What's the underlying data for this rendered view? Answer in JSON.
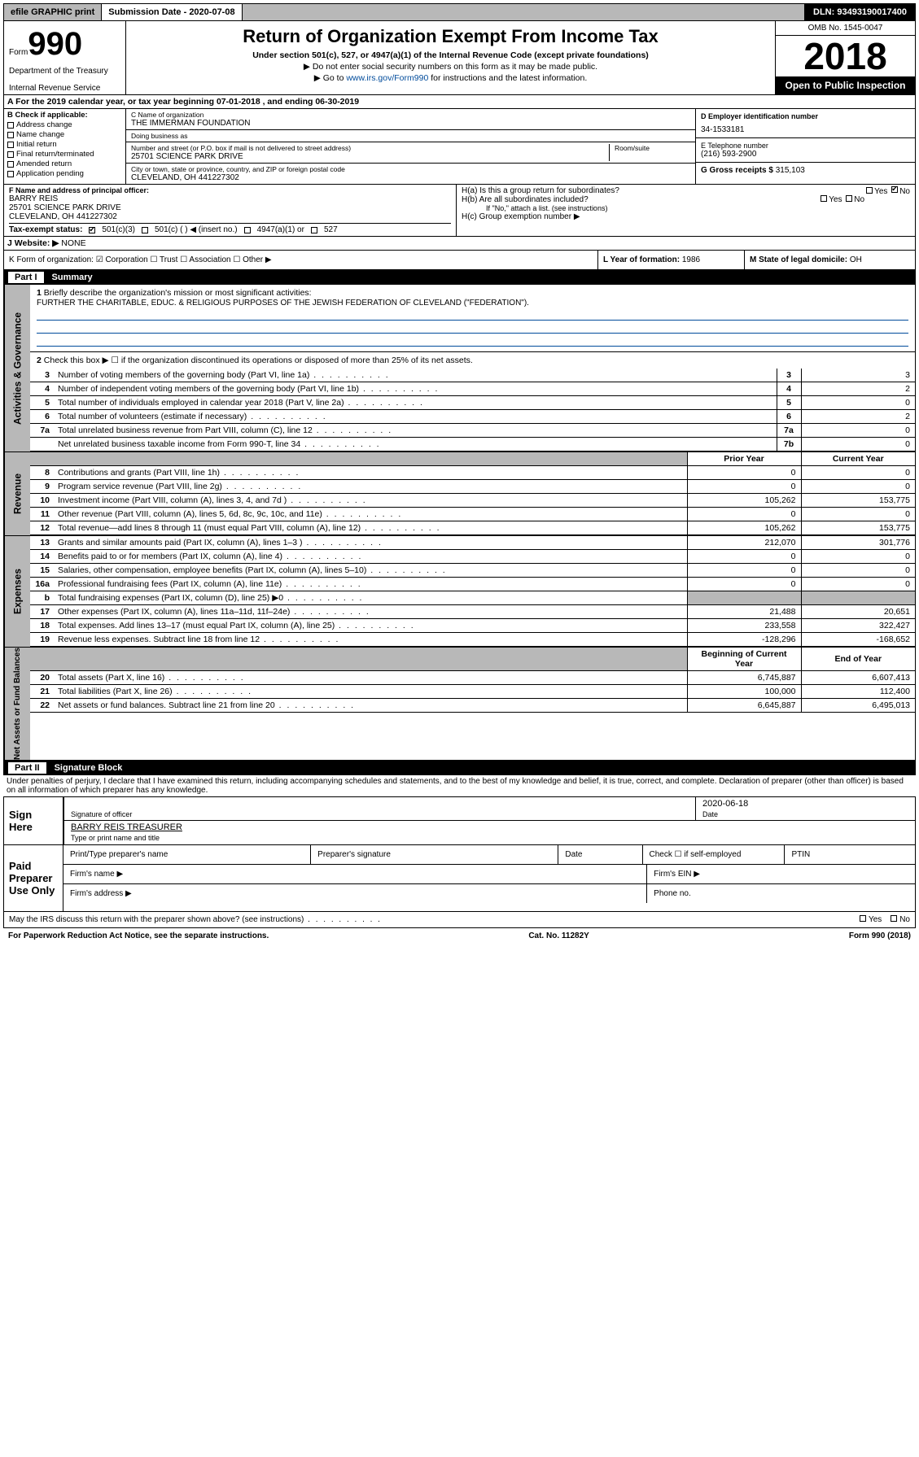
{
  "topbar": {
    "efile": "efile GRAPHIC print",
    "submission_label": "Submission Date - 2020-07-08",
    "dln": "DLN: 93493190017400"
  },
  "header": {
    "form_word": "Form",
    "form_num": "990",
    "agency1": "Department of the Treasury",
    "agency2": "Internal Revenue Service",
    "title": "Return of Organization Exempt From Income Tax",
    "sub1": "Under section 501(c), 527, or 4947(a)(1) of the Internal Revenue Code (except private foundations)",
    "sub2": "▶ Do not enter social security numbers on this form as it may be made public.",
    "sub3_prefix": "▶ Go to ",
    "sub3_link": "www.irs.gov/Form990",
    "sub3_suffix": " for instructions and the latest information.",
    "omb": "OMB No. 1545-0047",
    "year": "2018",
    "open": "Open to Public Inspection"
  },
  "rowA": "A   For the 2019 calendar year, or tax year beginning 07-01-2018    , and ending 06-30-2019",
  "sectionB": {
    "label": "B Check if applicable:",
    "items": [
      "Address change",
      "Name change",
      "Initial return",
      "Final return/terminated",
      "Amended return",
      "Application pending"
    ]
  },
  "sectionC": {
    "name_lbl": "C Name of organization",
    "name": "THE IMMERMAN FOUNDATION",
    "dba_lbl": "Doing business as",
    "dba": "",
    "addr_lbl": "Number and street (or P.O. box if mail is not delivered to street address)",
    "room_lbl": "Room/suite",
    "addr": "25701 SCIENCE PARK DRIVE",
    "city_lbl": "City or town, state or province, country, and ZIP or foreign postal code",
    "city": "CLEVELAND, OH  441227302"
  },
  "sectionD": {
    "ein_lbl": "D Employer identification number",
    "ein": "34-1533181",
    "tel_lbl": "E Telephone number",
    "tel": "(216) 593-2900",
    "gross_lbl": "G Gross receipts $",
    "gross": "315,103"
  },
  "sectionF": {
    "lbl": "F Name and address of principal officer:",
    "name": "BARRY REIS",
    "addr1": "25701 SCIENCE PARK DRIVE",
    "addr2": "CLEVELAND, OH  441227302"
  },
  "sectionH": {
    "ha": "H(a)  Is this a group return for subordinates?",
    "hb": "H(b)  Are all subordinates included?",
    "hb_note": "If \"No,\" attach a list. (see instructions)",
    "hc": "H(c)  Group exemption number ▶",
    "yes": "Yes",
    "no": "No"
  },
  "sectionI": {
    "lbl": "Tax-exempt status:",
    "opt1": "501(c)(3)",
    "opt2": "501(c) (  ) ◀ (insert no.)",
    "opt3": "4947(a)(1) or",
    "opt4": "527"
  },
  "sectionJ": {
    "lbl": "J   Website: ▶",
    "val": "NONE"
  },
  "sectionK": "K Form of organization:   ☑ Corporation  ☐ Trust  ☐ Association  ☐ Other ▶",
  "sectionL": {
    "lbl": "L Year of formation:",
    "val": "1986"
  },
  "sectionM": {
    "lbl": "M State of legal domicile:",
    "val": "OH"
  },
  "partI": {
    "num": "Part I",
    "title": "Summary"
  },
  "summary": {
    "line1_lbl": "Briefly describe the organization's mission or most significant activities:",
    "mission": "FURTHER THE CHARITABLE, EDUC. & RELIGIOUS PURPOSES OF THE JEWISH FEDERATION OF CLEVELAND (\"FEDERATION\").",
    "line2": "Check this box ▶ ☐  if the organization discontinued its operations or disposed of more than 25% of its net assets.",
    "col_prior": "Prior Year",
    "col_current": "Current Year",
    "col_begin": "Beginning of Current Year",
    "col_end": "End of Year",
    "rows_single": [
      {
        "n": "3",
        "t": "Number of voting members of the governing body (Part VI, line 1a)",
        "c": "3",
        "v": "3"
      },
      {
        "n": "4",
        "t": "Number of independent voting members of the governing body (Part VI, line 1b)",
        "c": "4",
        "v": "2"
      },
      {
        "n": "5",
        "t": "Total number of individuals employed in calendar year 2018 (Part V, line 2a)",
        "c": "5",
        "v": "0"
      },
      {
        "n": "6",
        "t": "Total number of volunteers (estimate if necessary)",
        "c": "6",
        "v": "2"
      },
      {
        "n": "7a",
        "t": "Total unrelated business revenue from Part VIII, column (C), line 12",
        "c": "7a",
        "v": "0"
      },
      {
        "n": "",
        "t": "Net unrelated business taxable income from Form 990-T, line 34",
        "c": "7b",
        "v": "0"
      }
    ],
    "rows_revenue": [
      {
        "n": "8",
        "t": "Contributions and grants (Part VIII, line 1h)",
        "p": "0",
        "c": "0"
      },
      {
        "n": "9",
        "t": "Program service revenue (Part VIII, line 2g)",
        "p": "0",
        "c": "0"
      },
      {
        "n": "10",
        "t": "Investment income (Part VIII, column (A), lines 3, 4, and 7d )",
        "p": "105,262",
        "c": "153,775"
      },
      {
        "n": "11",
        "t": "Other revenue (Part VIII, column (A), lines 5, 6d, 8c, 9c, 10c, and 11e)",
        "p": "0",
        "c": "0"
      },
      {
        "n": "12",
        "t": "Total revenue—add lines 8 through 11 (must equal Part VIII, column (A), line 12)",
        "p": "105,262",
        "c": "153,775"
      }
    ],
    "rows_expenses": [
      {
        "n": "13",
        "t": "Grants and similar amounts paid (Part IX, column (A), lines 1–3 )",
        "p": "212,070",
        "c": "301,776"
      },
      {
        "n": "14",
        "t": "Benefits paid to or for members (Part IX, column (A), line 4)",
        "p": "0",
        "c": "0"
      },
      {
        "n": "15",
        "t": "Salaries, other compensation, employee benefits (Part IX, column (A), lines 5–10)",
        "p": "0",
        "c": "0"
      },
      {
        "n": "16a",
        "t": "Professional fundraising fees (Part IX, column (A), line 11e)",
        "p": "0",
        "c": "0"
      },
      {
        "n": "b",
        "t": "Total fundraising expenses (Part IX, column (D), line 25) ▶0",
        "p": "",
        "c": "",
        "shade": true
      },
      {
        "n": "17",
        "t": "Other expenses (Part IX, column (A), lines 11a–11d, 11f–24e)",
        "p": "21,488",
        "c": "20,651"
      },
      {
        "n": "18",
        "t": "Total expenses. Add lines 13–17 (must equal Part IX, column (A), line 25)",
        "p": "233,558",
        "c": "322,427"
      },
      {
        "n": "19",
        "t": "Revenue less expenses. Subtract line 18 from line 12",
        "p": "-128,296",
        "c": "-168,652"
      }
    ],
    "rows_netassets": [
      {
        "n": "20",
        "t": "Total assets (Part X, line 16)",
        "p": "6,745,887",
        "c": "6,607,413"
      },
      {
        "n": "21",
        "t": "Total liabilities (Part X, line 26)",
        "p": "100,000",
        "c": "112,400"
      },
      {
        "n": "22",
        "t": "Net assets or fund balances. Subtract line 21 from line 20",
        "p": "6,645,887",
        "c": "6,495,013"
      }
    ]
  },
  "vtabs": {
    "gov": "Activities & Governance",
    "rev": "Revenue",
    "exp": "Expenses",
    "net": "Net Assets or Fund Balances"
  },
  "partII": {
    "num": "Part II",
    "title": "Signature Block",
    "perjury": "Under penalties of perjury, I declare that I have examined this return, including accompanying schedules and statements, and to the best of my knowledge and belief, it is true, correct, and complete. Declaration of preparer (other than officer) is based on all information of which preparer has any knowledge."
  },
  "sign": {
    "here": "Sign Here",
    "sig_lbl": "Signature of officer",
    "date_lbl": "Date",
    "date": "2020-06-18",
    "name": "BARRY REIS  TREASURER",
    "name_lbl": "Type or print name and title"
  },
  "paid": {
    "lbl": "Paid Preparer Use Only",
    "pname_lbl": "Print/Type preparer's name",
    "psig_lbl": "Preparer's signature",
    "pdate_lbl": "Date",
    "selfemp": "Check ☐ if self-employed",
    "ptin_lbl": "PTIN",
    "firm_lbl": "Firm's name  ▶",
    "fein_lbl": "Firm's EIN ▶",
    "faddr_lbl": "Firm's address ▶",
    "phone_lbl": "Phone no."
  },
  "footer": {
    "discuss": "May the IRS discuss this return with the preparer shown above? (see instructions)",
    "yes": "Yes",
    "no": "No",
    "paperwork": "For Paperwork Reduction Act Notice, see the separate instructions.",
    "cat": "Cat. No. 11282Y",
    "form": "Form 990 (2018)"
  },
  "colors": {
    "link": "#004b9b",
    "shade": "#b8b8b8"
  }
}
